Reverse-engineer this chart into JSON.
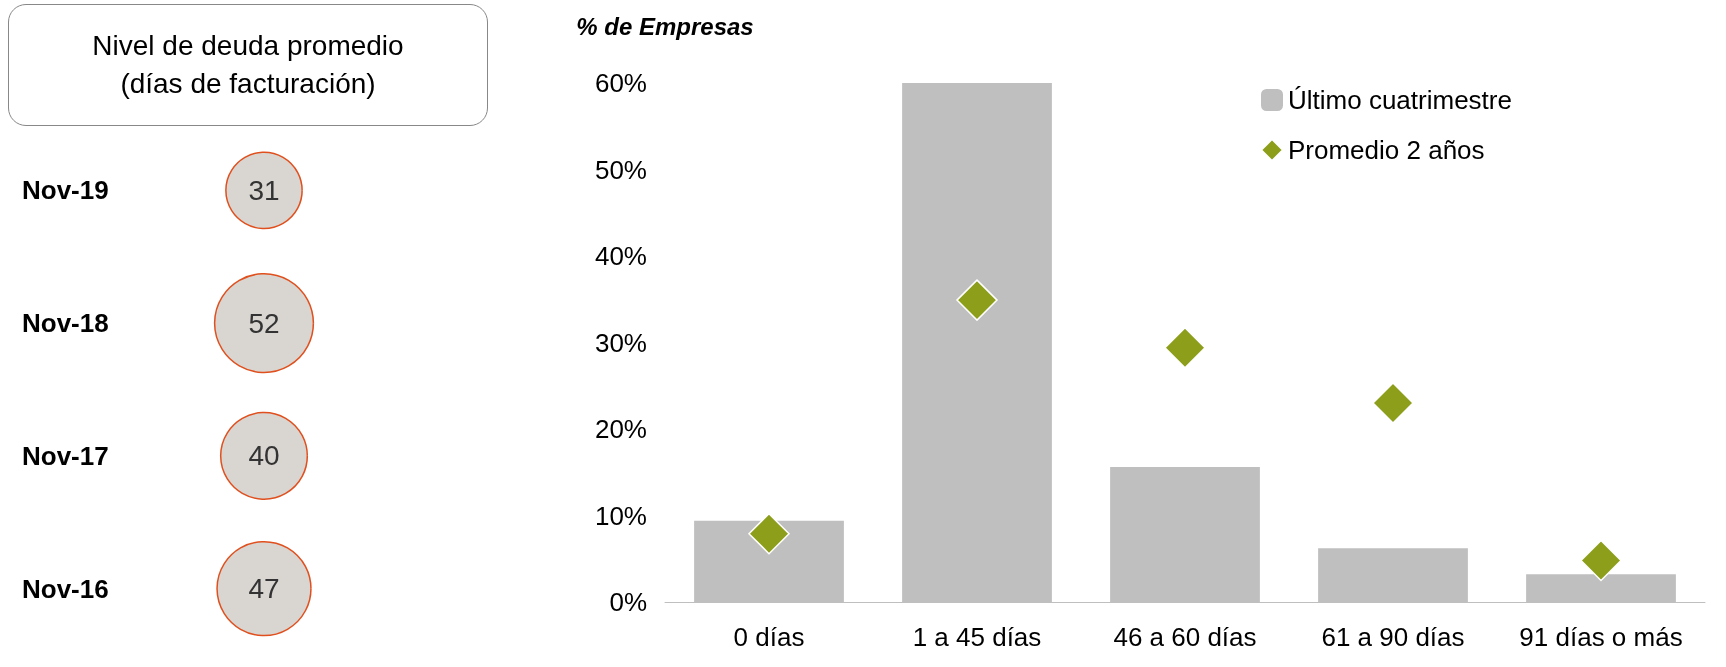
{
  "chart_data": [
    {
      "type": "other",
      "title": "Nivel de deuda promedio (días de facturación)",
      "categories": [
        "Nov-19",
        "Nov-18",
        "Nov-17",
        "Nov-16"
      ],
      "values": [
        31,
        52,
        40,
        47
      ],
      "color": "#d9d5d1",
      "data_labels": true
    },
    {
      "type": "bar",
      "ylabel": "% de Empresas",
      "categories": [
        "0 días",
        "1 a 45 días",
        "46 a 60 días",
        "61 a 90 días",
        "91 días o más"
      ],
      "series": [
        {
          "name": "Último cuatrimestre",
          "type": "bar",
          "color": "#bfbfbf",
          "values": [
            9.4,
            60,
            15.6,
            6.2,
            3.2
          ]
        },
        {
          "name": "Promedio 2 años",
          "type": "scatter",
          "color": "#8d9e1a",
          "marker": "diamond",
          "values": [
            7.9,
            34.9,
            29.4,
            23.0,
            4.8
          ]
        }
      ],
      "ylim": [
        0,
        60
      ],
      "yticks": [
        {
          "value": 0,
          "label": "0%"
        },
        {
          "value": 10,
          "label": "10%"
        },
        {
          "value": 20,
          "label": "20%"
        },
        {
          "value": 30,
          "label": "30%"
        },
        {
          "value": 40,
          "label": "40%"
        },
        {
          "value": 50,
          "label": "50%"
        },
        {
          "value": 60,
          "label": "60%"
        }
      ],
      "grid": false,
      "legend": "top right"
    }
  ]
}
